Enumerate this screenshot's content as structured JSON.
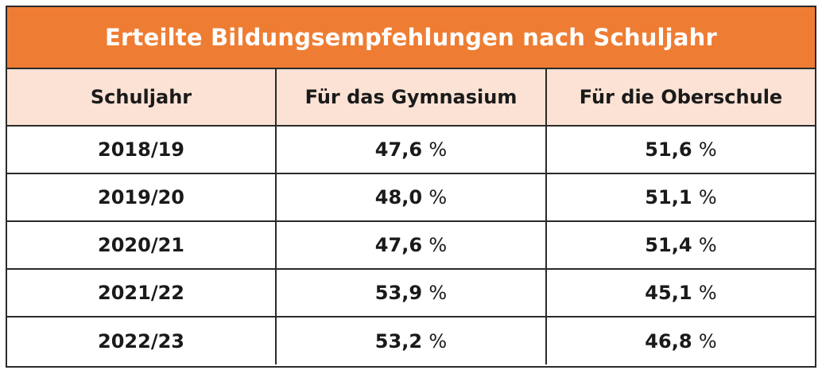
{
  "title": "Erteilte Bildungsempfehlungen nach Schuljahr",
  "columns": [
    "Schuljahr",
    "Für das Gymnasium",
    "Für die Oberschule"
  ],
  "rows": [
    {
      "year": "2018/19",
      "gymnasium": "47,6",
      "oberschule": "51,6"
    },
    {
      "year": "2019/20",
      "gymnasium": "48,0",
      "oberschule": "51,1"
    },
    {
      "year": "2020/21",
      "gymnasium": "47,6",
      "oberschule": "51,4"
    },
    {
      "year": "2021/22",
      "gymnasium": "53,9",
      "oberschule": "45,1"
    },
    {
      "year": "2022/23",
      "gymnasium": "53,2",
      "oberschule": "46,8"
    }
  ],
  "unit": "%",
  "colors": {
    "title_bg": "#ee7d33",
    "header_bg": "#fbe2d4",
    "border": "#2a2a2a"
  }
}
